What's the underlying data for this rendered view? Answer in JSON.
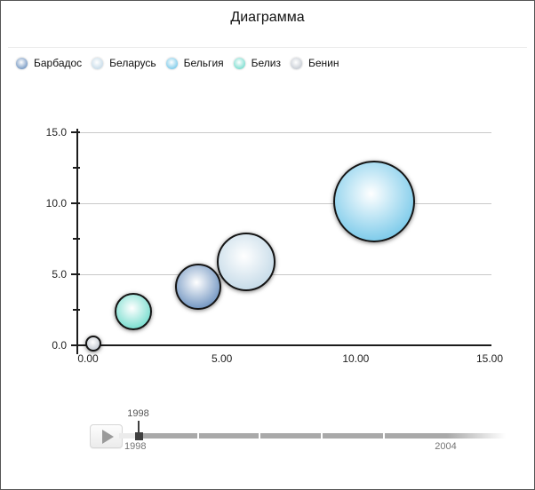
{
  "title": "Диаграмма",
  "legend": {
    "items": [
      {
        "label": "Барбадос",
        "color": "#6d92bf"
      },
      {
        "label": "Беларусь",
        "color": "#c3d9e7"
      },
      {
        "label": "Бельгия",
        "color": "#76c8e9"
      },
      {
        "label": "Белиз",
        "color": "#73dccd"
      },
      {
        "label": "Бенин",
        "color": "#c3c9d1"
      }
    ]
  },
  "chart_data": {
    "type": "scatter",
    "subtype": "bubble",
    "title": "Диаграмма",
    "xlabel": "",
    "ylabel": "",
    "xlim": [
      0,
      15
    ],
    "ylim": [
      0,
      15
    ],
    "x_tick_labels": [
      "0.00",
      "5.00",
      "10.00",
      "15.00"
    ],
    "x_tick_values": [
      0,
      5,
      10,
      15
    ],
    "y_tick_labels": [
      "0.0",
      "5.0",
      "10.0",
      "15.0"
    ],
    "y_tick_values": [
      0,
      5,
      10,
      15
    ],
    "y_minor_tick_values": [
      2.5,
      7.5,
      12.5
    ],
    "grid": true,
    "legend_position": "top",
    "series": [
      {
        "name": "Бенин",
        "x": 0.2,
        "y": 0.1,
        "radius_px": 9,
        "color": "#c3c9d1"
      },
      {
        "name": "Белиз",
        "x": 1.7,
        "y": 2.4,
        "radius_px": 21,
        "color": "#73dccd"
      },
      {
        "name": "Барбадос",
        "x": 4.1,
        "y": 4.1,
        "radius_px": 26,
        "color": "#6d92bf"
      },
      {
        "name": "Беларусь",
        "x": 5.9,
        "y": 5.9,
        "radius_px": 33,
        "color": "#c3d9e7"
      },
      {
        "name": "Бельгия",
        "x": 10.7,
        "y": 10.1,
        "radius_px": 46,
        "color": "#76c8e9"
      }
    ]
  },
  "timeline": {
    "current_year": "1998",
    "start_year": "1998",
    "end_year": "2004",
    "play_icon": "play-triangle"
  }
}
